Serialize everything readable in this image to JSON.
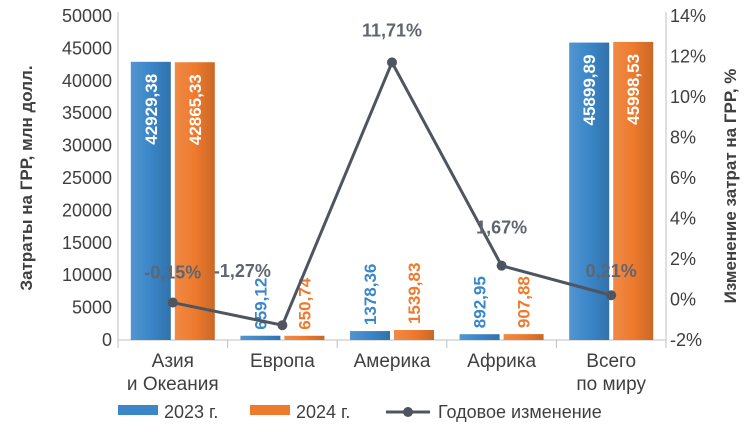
{
  "chart_data": {
    "type": "bar",
    "categories": [
      [
        "Азия",
        "и Океания"
      ],
      [
        "Европа"
      ],
      [
        "Америка"
      ],
      [
        "Африка"
      ],
      [
        "Всего",
        "по миру"
      ]
    ],
    "series": [
      {
        "name": "2023 г.",
        "type": "bar",
        "axis": "left",
        "color": "#3a86c8",
        "values": [
          42929.38,
          659.12,
          1378.36,
          892.95,
          45899.89
        ],
        "labels": [
          "42929,38",
          "659,12",
          "1378,36",
          "892,95",
          "45899,89"
        ]
      },
      {
        "name": "2024 г.",
        "type": "bar",
        "axis": "left",
        "color": "#ee7a2d",
        "values": [
          42865.33,
          650.74,
          1539.83,
          907.88,
          45998.53
        ],
        "labels": [
          "42865,33",
          "650,74",
          "1539,83",
          "907,88",
          "45998,53"
        ]
      },
      {
        "name": "Годовое изменение",
        "type": "line",
        "axis": "right",
        "color": "#4f5560",
        "values": [
          -0.15,
          -1.27,
          11.71,
          1.67,
          0.21
        ],
        "labels": [
          "-0,15%",
          "-1,27%",
          "11,71%",
          "1,67%",
          "0,21%"
        ]
      }
    ],
    "y_left": {
      "label": "Затраты на ГРР, млн долл.",
      "min": 0,
      "max": 50000,
      "ticks": [
        "0",
        "5000",
        "10000",
        "15000",
        "20000",
        "25000",
        "30000",
        "35000",
        "40000",
        "45000",
        "50000"
      ]
    },
    "y_right": {
      "label": "Изменение затрат на ГРР, %",
      "min": -2,
      "max": 14,
      "ticks": [
        "-2%",
        "0%",
        "2%",
        "4%",
        "6%",
        "8%",
        "10%",
        "12%",
        "14%"
      ]
    },
    "grid": false,
    "legend_position": "bottom"
  }
}
